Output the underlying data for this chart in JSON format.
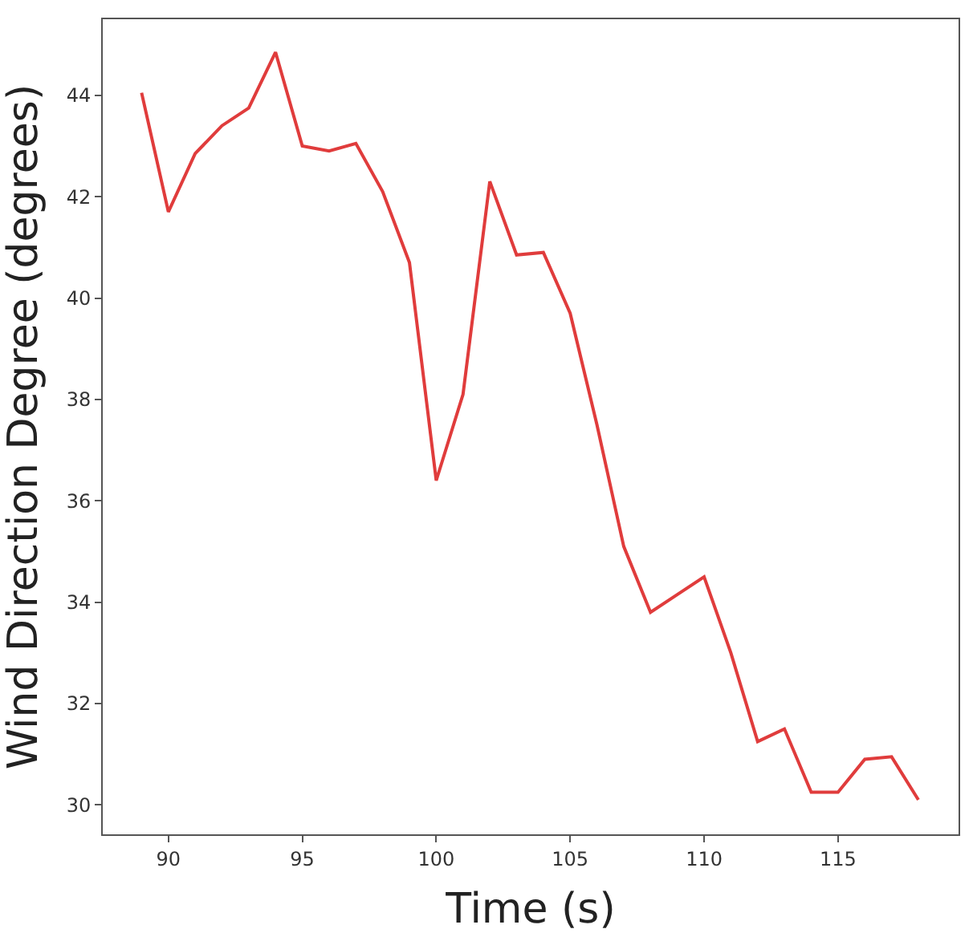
{
  "chart_data": {
    "type": "line",
    "xlabel": "Time (s)",
    "ylabel": "Wind Direction Degree (degrees)",
    "x": [
      89,
      90,
      91,
      92,
      93,
      94,
      95,
      96,
      97,
      98,
      99,
      100,
      101,
      102,
      103,
      104,
      105,
      106,
      107,
      108,
      109,
      110,
      111,
      112,
      113,
      114,
      115,
      116,
      117,
      118
    ],
    "series": [
      {
        "color": "#e03c3c",
        "values": [
          44.05,
          41.7,
          42.85,
          43.4,
          43.75,
          44.85,
          43.0,
          42.9,
          43.05,
          42.1,
          40.7,
          36.4,
          38.1,
          42.3,
          40.85,
          40.9,
          39.7,
          37.5,
          35.1,
          33.8,
          34.15,
          34.5,
          33.0,
          31.25,
          31.5,
          30.25,
          30.25,
          30.9,
          30.95,
          30.1
        ]
      }
    ],
    "xlim": [
      87.55,
      119.5
    ],
    "xticks": [
      90,
      95,
      100,
      105,
      110,
      115
    ],
    "ylim": [
      29.42,
      45.5
    ],
    "yticks": [
      30,
      32,
      34,
      36,
      38,
      40,
      42,
      44
    ],
    "marker": "none",
    "line_style": "solid"
  }
}
